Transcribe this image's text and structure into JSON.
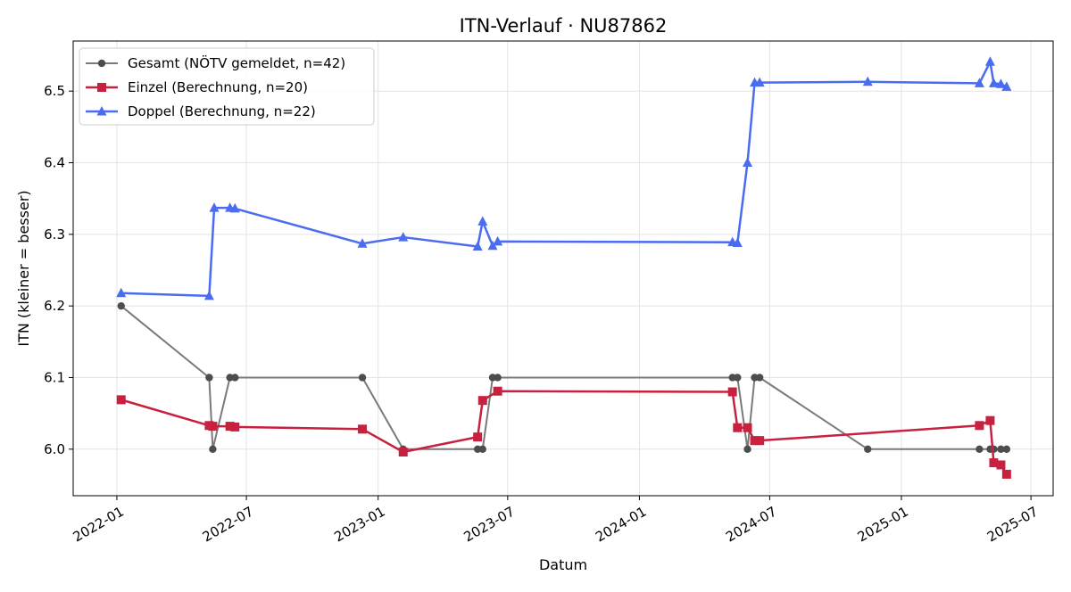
{
  "chart_data": {
    "type": "line",
    "title": "ITN-Verlauf · NU87862",
    "xlabel": "Datum",
    "ylabel": "ITN  (kleiner = besser)",
    "x_axis_type": "date",
    "xlim": [
      "2021-11-01",
      "2025-08-01"
    ],
    "ylim": [
      5.935,
      6.57
    ],
    "x_ticks": [
      "2022-01",
      "2022-07",
      "2023-01",
      "2023-07",
      "2024-01",
      "2024-07",
      "2025-01",
      "2025-07"
    ],
    "y_ticks": [
      6.0,
      6.1,
      6.2,
      6.3,
      6.4,
      6.5
    ],
    "y_tick_labels": [
      "6.0",
      "6.1",
      "6.2",
      "6.3",
      "6.4",
      "6.5"
    ],
    "grid": true,
    "legend_position": "top-left",
    "series": [
      {
        "name": "Gesamt (NÖTV gemeldet, n=42)",
        "color": "#6e6e6e",
        "marker": "circle",
        "points": [
          [
            "2022-01-07",
            6.2
          ],
          [
            "2022-05-10",
            6.1
          ],
          [
            "2022-05-15",
            6.0
          ],
          [
            "2022-06-08",
            6.1
          ],
          [
            "2022-06-15",
            6.1
          ],
          [
            "2022-12-10",
            6.1
          ],
          [
            "2023-02-05",
            6.0
          ],
          [
            "2023-05-20",
            6.0
          ],
          [
            "2023-05-27",
            6.0
          ],
          [
            "2023-06-10",
            6.1
          ],
          [
            "2023-06-17",
            6.1
          ],
          [
            "2024-05-10",
            6.1
          ],
          [
            "2024-05-17",
            6.1
          ],
          [
            "2024-05-31",
            6.0
          ],
          [
            "2024-06-10",
            6.1
          ],
          [
            "2024-06-17",
            6.1
          ],
          [
            "2024-11-15",
            6.0
          ],
          [
            "2025-04-20",
            6.0
          ],
          [
            "2025-05-05",
            6.0
          ],
          [
            "2025-05-10",
            6.0
          ],
          [
            "2025-05-20",
            6.0
          ],
          [
            "2025-05-28",
            6.0
          ]
        ]
      },
      {
        "name": "Einzel (Berechnung, n=20)",
        "color": "#c8203f",
        "marker": "square",
        "points": [
          [
            "2022-01-07",
            6.069
          ],
          [
            "2022-05-10",
            6.033
          ],
          [
            "2022-05-15",
            6.032
          ],
          [
            "2022-06-08",
            6.032
          ],
          [
            "2022-06-15",
            6.031
          ],
          [
            "2022-12-10",
            6.028
          ],
          [
            "2023-02-05",
            5.996
          ],
          [
            "2023-05-20",
            6.017
          ],
          [
            "2023-05-27",
            6.068
          ],
          [
            "2023-06-17",
            6.081
          ],
          [
            "2024-05-10",
            6.08
          ],
          [
            "2024-05-17",
            6.03
          ],
          [
            "2024-05-31",
            6.03
          ],
          [
            "2024-06-10",
            6.012
          ],
          [
            "2024-06-17",
            6.012
          ],
          [
            "2025-04-20",
            6.033
          ],
          [
            "2025-05-05",
            6.04
          ],
          [
            "2025-05-10",
            5.981
          ],
          [
            "2025-05-20",
            5.978
          ],
          [
            "2025-05-28",
            5.965
          ]
        ]
      },
      {
        "name": "Doppel (Berechnung, n=22)",
        "color": "#4a6cf0",
        "marker": "triangle",
        "points": [
          [
            "2022-01-07",
            6.218
          ],
          [
            "2022-05-10",
            6.214
          ],
          [
            "2022-05-17",
            6.337
          ],
          [
            "2022-06-08",
            6.337
          ],
          [
            "2022-06-15",
            6.336
          ],
          [
            "2022-12-10",
            6.287
          ],
          [
            "2023-02-05",
            6.296
          ],
          [
            "2023-05-20",
            6.283
          ],
          [
            "2023-05-27",
            6.318
          ],
          [
            "2023-06-10",
            6.284
          ],
          [
            "2023-06-17",
            6.29
          ],
          [
            "2024-05-10",
            6.289
          ],
          [
            "2024-05-17",
            6.288
          ],
          [
            "2024-05-31",
            6.4
          ],
          [
            "2024-06-10",
            6.512
          ],
          [
            "2024-06-17",
            6.512
          ],
          [
            "2024-11-15",
            6.513
          ],
          [
            "2025-04-20",
            6.511
          ],
          [
            "2025-05-05",
            6.541
          ],
          [
            "2025-05-10",
            6.511
          ],
          [
            "2025-05-20",
            6.51
          ],
          [
            "2025-05-28",
            6.506
          ]
        ]
      }
    ]
  }
}
